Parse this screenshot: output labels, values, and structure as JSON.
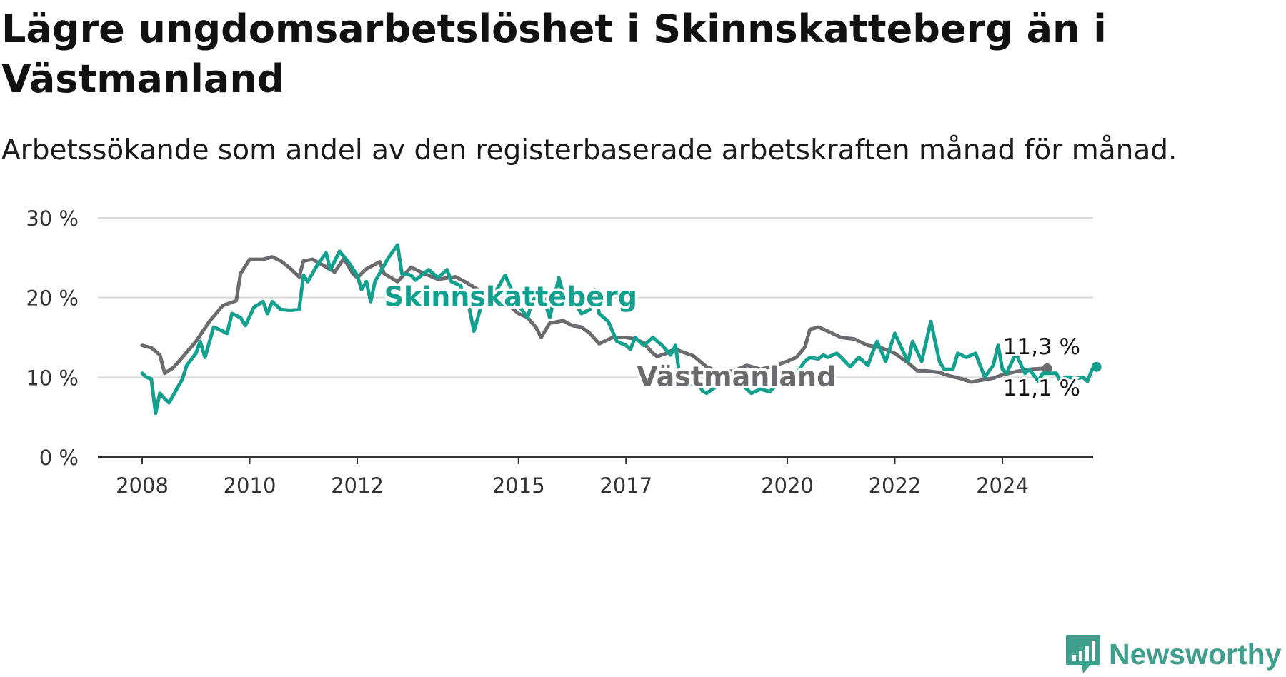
{
  "chart_data": {
    "type": "line",
    "title": "Lägre ungdomsarbetslöshet i Skinnskatteberg än i Västmanland",
    "subtitle": "Arbetssökande som andel av den registerbaserade arbetskraften månad för månad.",
    "ylim": [
      0,
      30
    ],
    "xlim": [
      2007.55,
      2025.85
    ],
    "yticks": [
      0,
      10,
      20,
      30
    ],
    "ytick_labels": [
      "0 %",
      "10 %",
      "20 %",
      "30 %"
    ],
    "xticks": [
      2008,
      2010,
      2012,
      2015,
      2017,
      2020,
      2022,
      2024
    ],
    "xtick_labels": [
      "2008",
      "2010",
      "2012",
      "2015",
      "2017",
      "2020",
      "2022",
      "2024"
    ],
    "grid": true,
    "series": [
      {
        "name": "Västmanland",
        "color": "#6b6a6e",
        "end_label": "11,1 %",
        "points": [
          [
            2008.0,
            14.0
          ],
          [
            2008.17,
            13.7
          ],
          [
            2008.33,
            12.8
          ],
          [
            2008.42,
            10.5
          ],
          [
            2008.58,
            11.2
          ],
          [
            2008.75,
            12.5
          ],
          [
            2009.0,
            14.5
          ],
          [
            2009.25,
            17.0
          ],
          [
            2009.5,
            19.0
          ],
          [
            2009.75,
            19.6
          ],
          [
            2009.83,
            23.0
          ],
          [
            2010.0,
            24.8
          ],
          [
            2010.25,
            24.8
          ],
          [
            2010.42,
            25.1
          ],
          [
            2010.58,
            24.6
          ],
          [
            2010.75,
            23.7
          ],
          [
            2010.92,
            22.6
          ],
          [
            2011.0,
            24.6
          ],
          [
            2011.17,
            24.8
          ],
          [
            2011.33,
            24.2
          ],
          [
            2011.58,
            23.2
          ],
          [
            2011.75,
            24.9
          ],
          [
            2011.92,
            23.0
          ],
          [
            2012.0,
            22.5
          ],
          [
            2012.17,
            23.6
          ],
          [
            2012.42,
            24.5
          ],
          [
            2012.5,
            23.0
          ],
          [
            2012.75,
            22.0
          ],
          [
            2013.0,
            23.8
          ],
          [
            2013.25,
            23.0
          ],
          [
            2013.5,
            22.3
          ],
          [
            2013.83,
            22.6
          ],
          [
            2014.0,
            22.0
          ],
          [
            2014.25,
            21.0
          ],
          [
            2014.5,
            19.8
          ],
          [
            2014.75,
            19.4
          ],
          [
            2015.0,
            18.0
          ],
          [
            2015.17,
            17.5
          ],
          [
            2015.33,
            16.2
          ],
          [
            2015.42,
            15.0
          ],
          [
            2015.58,
            16.8
          ],
          [
            2015.83,
            17.1
          ],
          [
            2016.0,
            16.5
          ],
          [
            2016.17,
            16.3
          ],
          [
            2016.33,
            15.5
          ],
          [
            2016.5,
            14.2
          ],
          [
            2016.75,
            15.0
          ],
          [
            2017.0,
            15.0
          ],
          [
            2017.17,
            14.8
          ],
          [
            2017.33,
            14.3
          ],
          [
            2017.5,
            13.0
          ],
          [
            2017.58,
            12.6
          ],
          [
            2017.75,
            13.0
          ],
          [
            2017.92,
            13.6
          ],
          [
            2018.0,
            13.3
          ],
          [
            2018.25,
            12.7
          ],
          [
            2018.5,
            11.3
          ],
          [
            2018.75,
            10.6
          ],
          [
            2019.0,
            10.8
          ],
          [
            2019.25,
            11.5
          ],
          [
            2019.5,
            11.0
          ],
          [
            2019.75,
            11.4
          ],
          [
            2020.0,
            12.0
          ],
          [
            2020.17,
            12.5
          ],
          [
            2020.33,
            13.8
          ],
          [
            2020.42,
            16.0
          ],
          [
            2020.58,
            16.3
          ],
          [
            2020.75,
            15.8
          ],
          [
            2021.0,
            15.0
          ],
          [
            2021.25,
            14.8
          ],
          [
            2021.5,
            14.0
          ],
          [
            2021.75,
            13.7
          ],
          [
            2022.0,
            13.0
          ],
          [
            2022.25,
            11.8
          ],
          [
            2022.42,
            10.8
          ],
          [
            2022.58,
            10.8
          ],
          [
            2022.83,
            10.6
          ],
          [
            2023.0,
            10.2
          ],
          [
            2023.25,
            9.8
          ],
          [
            2023.42,
            9.4
          ],
          [
            2023.58,
            9.6
          ],
          [
            2023.83,
            9.9
          ],
          [
            2024.0,
            10.3
          ],
          [
            2024.25,
            10.7
          ],
          [
            2024.5,
            11.0
          ],
          [
            2024.75,
            11.1
          ],
          [
            2024.83,
            11.1
          ]
        ]
      },
      {
        "name": "Skinnskatteberg",
        "color": "#12a08f",
        "end_label": "11,3 %",
        "points": [
          [
            2008.0,
            10.5
          ],
          [
            2008.08,
            10.0
          ],
          [
            2008.17,
            9.8
          ],
          [
            2008.25,
            5.5
          ],
          [
            2008.33,
            8.0
          ],
          [
            2008.42,
            7.3
          ],
          [
            2008.5,
            6.8
          ],
          [
            2008.75,
            9.8
          ],
          [
            2008.83,
            11.5
          ],
          [
            2009.0,
            13.0
          ],
          [
            2009.08,
            14.5
          ],
          [
            2009.17,
            12.5
          ],
          [
            2009.33,
            16.3
          ],
          [
            2009.5,
            15.8
          ],
          [
            2009.58,
            15.5
          ],
          [
            2009.67,
            18.0
          ],
          [
            2009.83,
            17.5
          ],
          [
            2009.92,
            16.5
          ],
          [
            2010.08,
            18.8
          ],
          [
            2010.25,
            19.5
          ],
          [
            2010.33,
            18.0
          ],
          [
            2010.42,
            19.5
          ],
          [
            2010.58,
            18.5
          ],
          [
            2010.75,
            18.4
          ],
          [
            2010.92,
            18.5
          ],
          [
            2011.0,
            22.8
          ],
          [
            2011.08,
            22.0
          ],
          [
            2011.25,
            24.0
          ],
          [
            2011.42,
            25.6
          ],
          [
            2011.5,
            23.5
          ],
          [
            2011.67,
            25.8
          ],
          [
            2011.83,
            24.5
          ],
          [
            2012.0,
            22.8
          ],
          [
            2012.08,
            21.0
          ],
          [
            2012.17,
            22.0
          ],
          [
            2012.25,
            19.5
          ],
          [
            2012.33,
            22.0
          ],
          [
            2012.58,
            25.0
          ],
          [
            2012.75,
            26.6
          ],
          [
            2012.83,
            23.0
          ],
          [
            2013.0,
            22.8
          ],
          [
            2013.08,
            22.2
          ],
          [
            2013.33,
            23.5
          ],
          [
            2013.5,
            22.5
          ],
          [
            2013.67,
            23.5
          ],
          [
            2013.75,
            22.0
          ],
          [
            2013.92,
            21.5
          ],
          [
            2014.08,
            18.8
          ],
          [
            2014.17,
            15.8
          ],
          [
            2014.33,
            19.5
          ],
          [
            2014.5,
            21.5
          ],
          [
            2014.58,
            20.8
          ],
          [
            2014.75,
            22.8
          ],
          [
            2015.0,
            19.0
          ],
          [
            2015.17,
            17.5
          ],
          [
            2015.25,
            19.5
          ],
          [
            2015.42,
            21.0
          ],
          [
            2015.58,
            17.5
          ],
          [
            2015.75,
            22.5
          ],
          [
            2015.83,
            20.5
          ],
          [
            2016.0,
            20.0
          ],
          [
            2016.08,
            19.0
          ],
          [
            2016.17,
            18.0
          ],
          [
            2016.33,
            18.5
          ],
          [
            2016.42,
            21.0
          ],
          [
            2016.5,
            18.0
          ],
          [
            2016.67,
            17.0
          ],
          [
            2016.83,
            14.5
          ],
          [
            2017.0,
            14.0
          ],
          [
            2017.08,
            13.5
          ],
          [
            2017.17,
            15.0
          ],
          [
            2017.33,
            14.0
          ],
          [
            2017.5,
            15.0
          ],
          [
            2017.67,
            14.0
          ],
          [
            2017.83,
            12.8
          ],
          [
            2017.92,
            14.0
          ],
          [
            2018.0,
            10.0
          ],
          [
            2018.17,
            9.0
          ],
          [
            2018.33,
            9.5
          ],
          [
            2018.42,
            8.3
          ],
          [
            2018.5,
            8.0
          ],
          [
            2018.67,
            8.8
          ],
          [
            2018.83,
            10.0
          ],
          [
            2019.0,
            10.0
          ],
          [
            2019.17,
            9.0
          ],
          [
            2019.33,
            8.0
          ],
          [
            2019.5,
            8.5
          ],
          [
            2019.67,
            8.2
          ],
          [
            2019.83,
            9.2
          ],
          [
            2020.0,
            9.8
          ],
          [
            2020.17,
            10.5
          ],
          [
            2020.33,
            12.0
          ],
          [
            2020.42,
            12.5
          ],
          [
            2020.58,
            12.3
          ],
          [
            2020.67,
            12.8
          ],
          [
            2020.75,
            12.5
          ],
          [
            2020.92,
            13.0
          ],
          [
            2021.0,
            12.5
          ],
          [
            2021.17,
            11.3
          ],
          [
            2021.33,
            12.5
          ],
          [
            2021.5,
            11.5
          ],
          [
            2021.58,
            13.0
          ],
          [
            2021.67,
            14.5
          ],
          [
            2021.83,
            12.0
          ],
          [
            2022.0,
            15.5
          ],
          [
            2022.17,
            13.0
          ],
          [
            2022.25,
            12.0
          ],
          [
            2022.33,
            14.5
          ],
          [
            2022.5,
            12.0
          ],
          [
            2022.67,
            17.0
          ],
          [
            2022.83,
            12.0
          ],
          [
            2022.92,
            11.0
          ],
          [
            2023.08,
            11.0
          ],
          [
            2023.17,
            13.0
          ],
          [
            2023.33,
            12.5
          ],
          [
            2023.5,
            13.0
          ],
          [
            2023.67,
            10.0
          ],
          [
            2023.83,
            11.5
          ],
          [
            2023.92,
            14.0
          ],
          [
            2024.0,
            11.0
          ],
          [
            2024.08,
            10.5
          ],
          [
            2024.25,
            13.0
          ],
          [
            2024.42,
            10.5
          ],
          [
            2024.5,
            11.0
          ],
          [
            2024.67,
            9.5
          ],
          [
            2024.75,
            10.5
          ],
          [
            2024.83,
            10.5
          ],
          [
            2025.0,
            10.5
          ],
          [
            2025.08,
            9.5
          ],
          [
            2025.17,
            10.0
          ],
          [
            2025.25,
            10.0
          ],
          [
            2025.33,
            9.8
          ],
          [
            2025.5,
            10.0
          ],
          [
            2025.58,
            9.5
          ],
          [
            2025.67,
            11.0
          ],
          [
            2025.75,
            11.3
          ]
        ]
      }
    ],
    "annotations": [
      {
        "text": "Skinnskatteberg",
        "x": 2012.5,
        "y": 20.0,
        "color": "#12a08f"
      },
      {
        "text": "Västmanland",
        "x": 2017.2,
        "y": 10.0,
        "color": "#6b6a6e"
      }
    ]
  },
  "branding": {
    "logo_text": "Newsworthy",
    "color": "#3f9e8c",
    "icon": "newsworthy-logo-icon"
  }
}
